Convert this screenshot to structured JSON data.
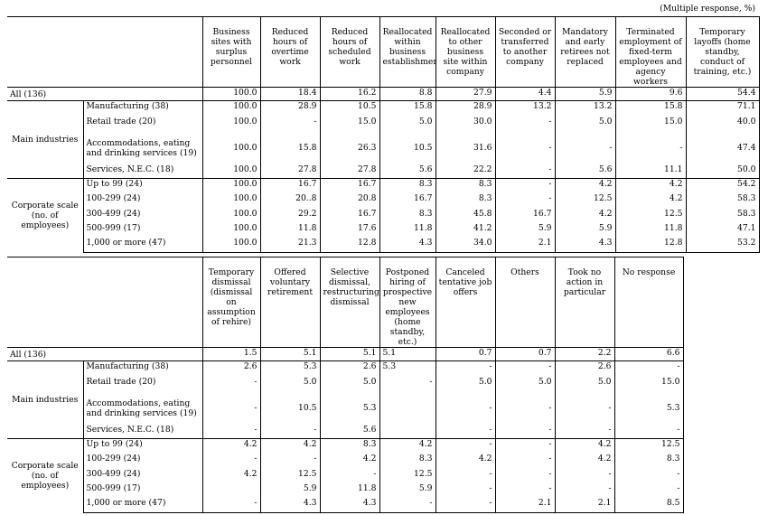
{
  "note": "(Multiple response, %)",
  "table1": {
    "headers": [
      "Business sites with surplus personnel",
      "Reduced hours of overtime work",
      "Reduced hours of scheduled work",
      "Reallocated within business establishments",
      "Reallocated to other business site within company",
      "Seconded or transferred to another company",
      "Mandatory and early retirees not replaced",
      "Terminated employment of fixed-term employees and agency workers",
      "Temporary layoffs (home standby, conduct of training, etc.)"
    ],
    "all": {
      "label": "All (136)",
      "values": [
        "100.0",
        "18.4",
        "16.2",
        "8.8",
        "27.9",
        "4.4",
        "5.9",
        "9.6",
        "54.4"
      ]
    },
    "group1": {
      "label": "Main industries",
      "rows": [
        {
          "label": "Manufacturing (38)",
          "values": [
            "100.0",
            "28.9",
            "10.5",
            "15.8",
            "28.9",
            "13.2",
            "13.2",
            "15.8",
            "71.1"
          ]
        },
        {
          "label": "Retail trade (20)",
          "values": [
            "100.0",
            "-",
            "15.0",
            "5.0",
            "30.0",
            "-",
            "5.0",
            "15.0",
            "40.0"
          ]
        },
        {
          "label": "Accommodations, eating and drinking services (19)",
          "values": [
            "100.0",
            "15.8",
            "26.3",
            "10.5",
            "31.6",
            "-",
            "-",
            "-",
            "47.4"
          ]
        },
        {
          "label": "Services, N.E.C. (18)",
          "values": [
            "100.0",
            "27.8",
            "27.8",
            "5.6",
            "22.2",
            "-",
            "5.6",
            "11.1",
            "50.0"
          ]
        }
      ]
    },
    "group2": {
      "label": "Corporate scale (no. of employees)",
      "rows": [
        {
          "label": "Up to 99 (24)",
          "values": [
            "100.0",
            "16.7",
            "16.7",
            "8.3",
            "8.3",
            "-",
            "4.2",
            "4.2",
            "54.2"
          ]
        },
        {
          "label": "100-299 (24)",
          "values": [
            "100.0",
            "20..8",
            "20.8",
            "16.7",
            "8.3",
            "-",
            "12.5",
            "4.2",
            "58.3"
          ]
        },
        {
          "label": "300-499 (24)",
          "values": [
            "100.0",
            "29.2",
            "16.7",
            "8.3",
            "45.8",
            "16.7",
            "4.2",
            "12.5",
            "58.3"
          ]
        },
        {
          "label": "500-999 (17)",
          "values": [
            "100.0",
            "11.8",
            "17.6",
            "11.8",
            "41.2",
            "5.9",
            "5.9",
            "11.8",
            "47.1"
          ]
        },
        {
          "label": "1,000 or more (47)",
          "values": [
            "100.0",
            "21.3",
            "12.8",
            "4.3",
            "34.0",
            "2.1",
            "4.3",
            "12.8",
            "53.2"
          ]
        }
      ]
    }
  },
  "table2": {
    "headers": [
      "Temporary dismissal (dismissal on assumption of rehire)",
      "Offered voluntary retirement",
      "Selective dismissal, restructuring dismissal",
      "Postponed hiring of prospective new employees (home standby, etc.)",
      "Canceled tentative job offers",
      "Others",
      "Took no action in particular",
      "No response"
    ],
    "all": {
      "label": "All (136)",
      "values": [
        "1.5",
        "5.1",
        "5.1",
        "5.1",
        "0.7",
        "0.7",
        "2.2",
        "6.6"
      ]
    },
    "group1": {
      "label": "Main industries",
      "rows": [
        {
          "label": "Manufacturing (38)",
          "values": [
            "2.6",
            "5.3",
            "2.6",
            "5.3",
            "-",
            "-",
            "2.6",
            "-"
          ]
        },
        {
          "label": "Retail trade (20)",
          "values": [
            "-",
            "5.0",
            "5.0",
            "-",
            "5.0",
            "5.0",
            "5.0",
            "15.0"
          ]
        },
        {
          "label": "Accommodations, eating and drinking services (19)",
          "values": [
            "-",
            "10.5",
            "5.3",
            "",
            "-",
            "-",
            "-",
            "5.3"
          ]
        },
        {
          "label": "Services, N.E.C. (18)",
          "values": [
            "-",
            "-",
            "5.6",
            "",
            "-",
            "-",
            "-",
            "-"
          ]
        }
      ]
    },
    "group2": {
      "label": "Corporate scale (no. of employees)",
      "rows": [
        {
          "label": "Up to 99 (24)",
          "values": [
            "4.2",
            "4.2",
            "8.3",
            "4.2",
            "-",
            "-",
            "4.2",
            "12.5"
          ]
        },
        {
          "label": "100-299 (24)",
          "values": [
            "-",
            "-",
            "4.2",
            "8.3",
            "4.2",
            "-",
            "4.2",
            "8.3"
          ]
        },
        {
          "label": "300-499 (24)",
          "values": [
            "4.2",
            "12.5",
            "-",
            "12.5",
            "-",
            "-",
            "-",
            "-"
          ]
        },
        {
          "label": "500-999 (17)",
          "values": [
            "",
            "5.9",
            "11.8",
            "5.9",
            "-",
            "-",
            "-",
            "-"
          ]
        },
        {
          "label": "1,000 or more (47)",
          "values": [
            "-",
            "4.3",
            "4.3",
            "-",
            "-",
            "2.1",
            "2.1",
            "8.5"
          ]
        }
      ]
    }
  }
}
